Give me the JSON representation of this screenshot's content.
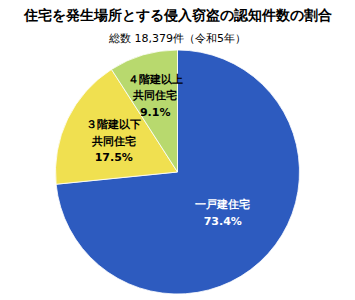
{
  "chart_data": {
    "type": "pie",
    "title": "住宅を発生場所とする侵入窃盗の認知件数の割合",
    "subtitle": "総数 18,379件（令和5年）",
    "categories": [
      "一戸建住宅",
      "３階建以下\n共同住宅",
      "４階建以上\n共同住宅"
    ],
    "values": [
      73.4,
      17.5,
      9.1
    ],
    "value_labels": [
      "73.4%",
      "17.5%",
      "9.1%"
    ],
    "colors": [
      "#2d5bbf",
      "#f0e050",
      "#b8d96e"
    ],
    "data_labels": true
  }
}
